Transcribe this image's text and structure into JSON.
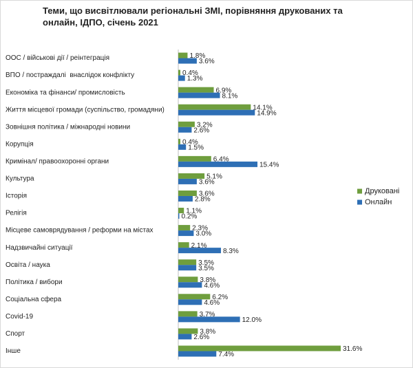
{
  "chart_data": {
    "type": "bar",
    "orientation": "horizontal",
    "title": "Теми, що висвітлювали регіональні ЗМІ, порівняння друкованих та онлайн, ІДПО, січень 2021",
    "categories": [
      "ООС / військові дії / реінтеграція",
      "ВПО / постраждалі  внаслідок конфлікту",
      "Економіка та фінанси/ промисловість",
      "Життя місцевої громади (суспільство, громадяни)",
      "Зовнішня політика / міжнародні новини",
      "Корупція",
      "Кримінал/ правоохоронні органи",
      "Культура",
      "Історія",
      "Релігія",
      "Місцеве самоврядування / реформи на містах",
      "Надзвичайні ситуації",
      "Освіта / наука",
      "Політика / вибори",
      "Соціальна сфера",
      "Covid-19",
      "Спорт",
      "Інше"
    ],
    "series": [
      {
        "name": "Друковані",
        "color": "#6f9e3e",
        "values": [
          1.8,
          0.4,
          6.9,
          14.1,
          3.2,
          0.4,
          6.4,
          5.1,
          3.6,
          1.1,
          2.3,
          2.1,
          3.5,
          3.8,
          6.2,
          3.7,
          3.8,
          31.6
        ],
        "value_labels": [
          "1.8%",
          "0.4%",
          "6.9%",
          "14.1%",
          "3.2%",
          "0.4%",
          "6.4%",
          "5.1%",
          "3.6%",
          "1.1%",
          "2.3%",
          "2.1%",
          "3.5%",
          "3.8%",
          "6.2%",
          "3.7%",
          "3.8%",
          "31.6%"
        ]
      },
      {
        "name": "Онлайн",
        "color": "#2e6fb5",
        "values": [
          3.6,
          1.3,
          8.1,
          14.9,
          2.6,
          1.5,
          15.4,
          3.6,
          2.8,
          0.2,
          3.0,
          8.3,
          3.5,
          4.6,
          4.6,
          12.0,
          2.6,
          7.4
        ],
        "value_labels": [
          "3.6%",
          "1.3%",
          "8.1%",
          "14.9%",
          "2.6%",
          "1.5%",
          "15.4%",
          "3.6%",
          "2.8%",
          "0.2%",
          "3.0%",
          "8.3%",
          "3.5%",
          "4.6%",
          "4.6%",
          "12.0%",
          "2.6%",
          "7.4%"
        ]
      }
    ],
    "legend": "right"
  }
}
